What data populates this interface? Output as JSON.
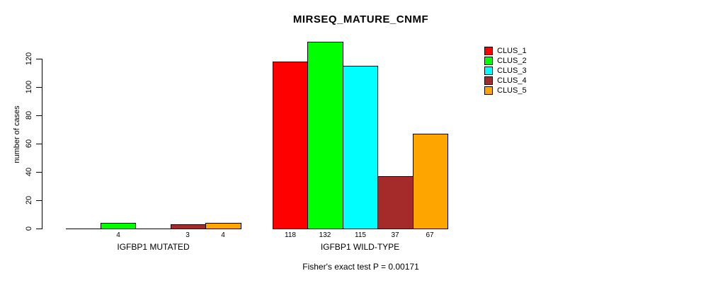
{
  "title": "MIRSEQ_MATURE_CNMF",
  "subtitle": "Fisher's exact test P = 0.00171",
  "ylabel": "number of cases",
  "legend": {
    "entries": [
      {
        "label": "CLUS_1",
        "color": "#FF0000"
      },
      {
        "label": "CLUS_2",
        "color": "#00FF00"
      },
      {
        "label": "CLUS_3",
        "color": "#00FFFF"
      },
      {
        "label": "CLUS_4",
        "color": "#A52A2A"
      },
      {
        "label": "CLUS_5",
        "color": "#FFA500"
      }
    ]
  },
  "chart_data": {
    "type": "bar",
    "title": "MIRSEQ_MATURE_CNMF",
    "ylabel": "number of cases",
    "xlabel": "",
    "ylim": [
      0,
      132
    ],
    "yticks": [
      0,
      20,
      40,
      60,
      80,
      100,
      120
    ],
    "grid": false,
    "legend_position": "top-right",
    "annotation": "Fisher's exact test P = 0.00171",
    "series_names": [
      "CLUS_1",
      "CLUS_2",
      "CLUS_3",
      "CLUS_4",
      "CLUS_5"
    ],
    "series_colors": [
      "#FF0000",
      "#00FF00",
      "#00FFFF",
      "#A52A2A",
      "#FFA500"
    ],
    "categories": [
      "IGFBP1 MUTATED",
      "IGFBP1 WILD-TYPE"
    ],
    "groups": [
      {
        "category": "IGFBP1 MUTATED",
        "values": [
          0,
          4,
          0,
          3,
          4
        ],
        "bar_labels": [
          "",
          "4",
          "",
          "3",
          "4"
        ]
      },
      {
        "category": "IGFBP1 WILD-TYPE",
        "values": [
          118,
          132,
          115,
          37,
          67
        ],
        "bar_labels": [
          "118",
          "132",
          "115",
          "37",
          "67"
        ]
      }
    ]
  }
}
